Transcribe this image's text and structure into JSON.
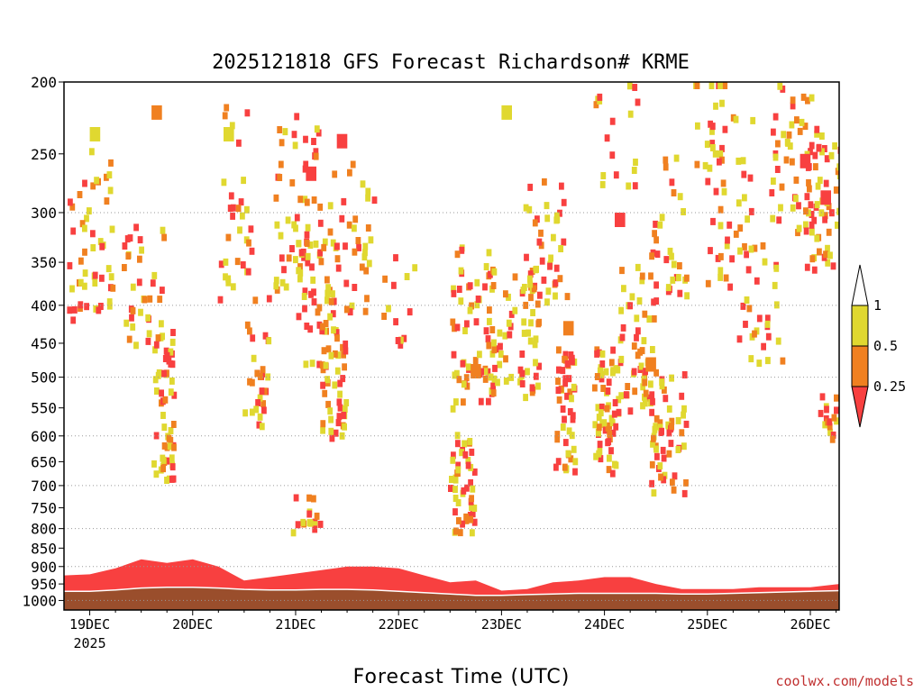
{
  "chart_data": {
    "type": "heatmap",
    "title": "2025121818 GFS Forecast Richardson# KRME",
    "xlabel": "Forecast Time (UTC)",
    "ylabel": "",
    "y_scale": "log-pressure",
    "y_ticks": [
      "200",
      "250",
      "300",
      "350",
      "400",
      "450",
      "500",
      "550",
      "600",
      "650",
      "700",
      "750",
      "800",
      "850",
      "900",
      "950",
      "1000"
    ],
    "y_tick_values": [
      200,
      250,
      300,
      350,
      400,
      450,
      500,
      550,
      600,
      650,
      700,
      750,
      800,
      850,
      900,
      950,
      1000
    ],
    "ylim": [
      200,
      1030
    ],
    "gridlines_at": [
      300,
      400,
      500,
      600,
      700,
      800,
      900,
      1000
    ],
    "x_ticks": [
      "19DEC",
      "20DEC",
      "21DEC",
      "22DEC",
      "23DEC",
      "24DEC",
      "25DEC",
      "26DEC"
    ],
    "x_year_label": "2025",
    "x_range_days": [
      18.75,
      26.28
    ],
    "color_scale": {
      "bins": [
        {
          "label": "0.25",
          "range": "< 0.25",
          "color": "#f84040"
        },
        {
          "label": "0.5",
          "range": "0.25 - 0.5",
          "color": "#f08020"
        },
        {
          "label": "1",
          "range": "0.5 - 1",
          "color": "#e0d830"
        }
      ],
      "upper_cap_color": "#ffffff",
      "lower_cap_color": "#f84040",
      "ground_color": "#9a4e2c"
    },
    "surface_layer": {
      "x_days": [
        18.75,
        19.0,
        19.25,
        19.5,
        19.75,
        20.0,
        20.25,
        20.5,
        20.75,
        21.0,
        21.25,
        21.5,
        21.75,
        22.0,
        22.25,
        22.5,
        22.75,
        23.0,
        23.25,
        23.5,
        23.75,
        24.0,
        24.25,
        24.5,
        24.75,
        25.0,
        25.25,
        25.5,
        25.75,
        26.0,
        26.28
      ],
      "ground_top_hPa": [
        972,
        972,
        968,
        962,
        960,
        960,
        962,
        966,
        968,
        968,
        966,
        966,
        968,
        972,
        976,
        980,
        984,
        984,
        982,
        980,
        978,
        978,
        978,
        978,
        980,
        980,
        978,
        976,
        974,
        972,
        970
      ],
      "low_ri_top_hPa": [
        925,
        922,
        905,
        880,
        890,
        880,
        900,
        940,
        930,
        920,
        910,
        900,
        900,
        905,
        925,
        945,
        940,
        970,
        965,
        945,
        940,
        930,
        930,
        950,
        965,
        965,
        965,
        960,
        960,
        960,
        950
      ]
    },
    "cells": [
      {
        "x": 19.0,
        "p": 230,
        "ri": "0.5-1"
      },
      {
        "x": 19.6,
        "p": 215,
        "ri": "0.25-0.5"
      },
      {
        "x": 20.3,
        "p": 230,
        "ri": "0.5-1"
      },
      {
        "x": 21.1,
        "p": 260,
        "ri": "<0.25"
      },
      {
        "x": 21.4,
        "p": 235,
        "ri": "<0.25"
      },
      {
        "x": 23.0,
        "p": 215,
        "ri": "0.5-1"
      },
      {
        "x": 24.1,
        "p": 300,
        "ri": "<0.25"
      },
      {
        "x": 25.9,
        "p": 250,
        "ri": "<0.25"
      },
      {
        "x": 26.1,
        "p": 280,
        "ri": "<0.25"
      },
      {
        "x": 23.6,
        "p": 420,
        "ri": "0.25-0.5"
      },
      {
        "x": 24.4,
        "p": 470,
        "ri": "0.25-0.5"
      },
      {
        "x": 22.7,
        "p": 480,
        "ri": "0.25-0.5"
      }
    ],
    "legend_placement": "right",
    "grid": true
  },
  "credit": "coolwx.com/models"
}
